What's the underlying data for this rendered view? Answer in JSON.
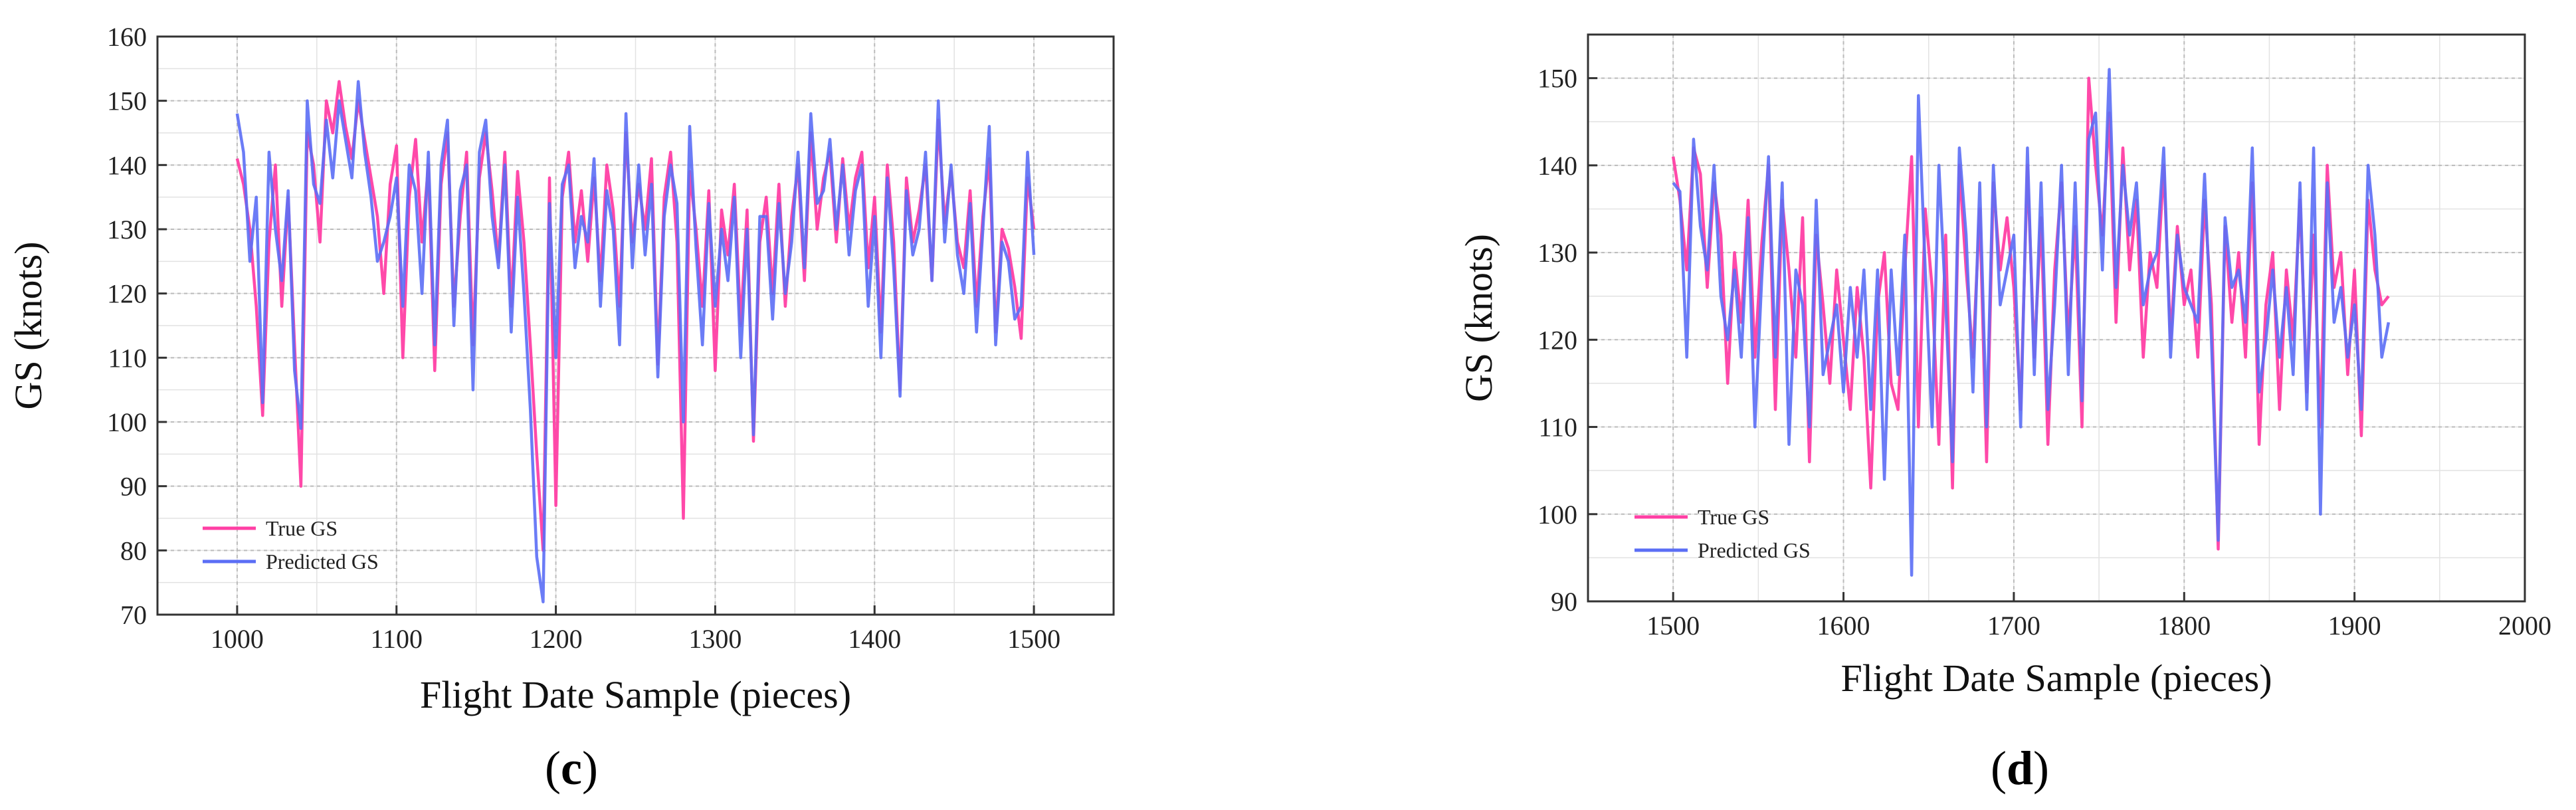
{
  "colors": {
    "true_series": "#ff3fa4",
    "predicted_series": "#5b6ef5",
    "grid": "#bbbbbb",
    "axis": "#333333"
  },
  "chart_data": [
    {
      "type": "line",
      "panel_label": "c",
      "xlabel": "Flight Date Sample (pieces)",
      "ylabel": "GS (knots)",
      "xlim": [
        950,
        1550
      ],
      "ylim": [
        70,
        160
      ],
      "xticks": [
        1000,
        1100,
        1200,
        1300,
        1400,
        1500
      ],
      "yticks": [
        70,
        80,
        90,
        100,
        110,
        120,
        130,
        140,
        150,
        160
      ],
      "grid": true,
      "legend_position": "lower-left",
      "series": [
        {
          "name": "True GS",
          "color": "#ff3fa4",
          "x": [
            1000,
            1004,
            1008,
            1012,
            1016,
            1020,
            1024,
            1028,
            1032,
            1036,
            1040,
            1044,
            1048,
            1052,
            1056,
            1060,
            1064,
            1068,
            1072,
            1076,
            1080,
            1084,
            1088,
            1092,
            1096,
            1100,
            1104,
            1108,
            1112,
            1116,
            1120,
            1124,
            1128,
            1132,
            1136,
            1140,
            1144,
            1148,
            1152,
            1156,
            1160,
            1164,
            1168,
            1172,
            1176,
            1180,
            1184,
            1188,
            1192,
            1196,
            1200,
            1204,
            1208,
            1212,
            1216,
            1220,
            1224,
            1228,
            1232,
            1236,
            1240,
            1244,
            1248,
            1252,
            1256,
            1260,
            1264,
            1268,
            1272,
            1276,
            1280,
            1284,
            1288,
            1292,
            1296,
            1300,
            1304,
            1308,
            1312,
            1316,
            1320,
            1324,
            1328,
            1332,
            1336,
            1340,
            1344,
            1348,
            1352,
            1356,
            1360,
            1364,
            1368,
            1372,
            1376,
            1380,
            1384,
            1388,
            1392,
            1396,
            1400,
            1404,
            1408,
            1412,
            1416,
            1420,
            1424,
            1428,
            1432,
            1436,
            1440,
            1444,
            1448,
            1452,
            1456,
            1460,
            1464,
            1468,
            1472,
            1476,
            1480,
            1484,
            1488,
            1492,
            1496,
            1500
          ],
          "y": [
            141,
            137,
            130,
            118,
            101,
            128,
            140,
            118,
            135,
            112,
            90,
            145,
            140,
            128,
            150,
            145,
            153,
            146,
            141,
            150,
            144,
            138,
            132,
            120,
            137,
            143,
            110,
            135,
            144,
            128,
            140,
            108,
            137,
            145,
            118,
            132,
            142,
            112,
            138,
            145,
            136,
            125,
            142,
            118,
            139,
            128,
            112,
            95,
            80,
            138,
            87,
            135,
            142,
            128,
            136,
            125,
            138,
            122,
            140,
            133,
            118,
            145,
            128,
            137,
            130,
            141,
            109,
            135,
            142,
            128,
            85,
            139,
            130,
            118,
            136,
            108,
            133,
            126,
            137,
            115,
            133,
            97,
            128,
            135,
            120,
            137,
            118,
            132,
            140,
            122,
            145,
            130,
            138,
            142,
            128,
            141,
            130,
            138,
            142,
            124,
            135,
            114,
            140,
            128,
            105,
            138,
            128,
            133,
            140,
            122,
            147,
            131,
            139,
            128,
            124,
            136,
            118,
            132,
            141,
            114,
            130,
            127,
            121,
            113,
            138,
            130
          ]
        },
        {
          "name": "Predicted GS",
          "color": "#5b6ef5",
          "x": [
            1000,
            1004,
            1008,
            1012,
            1016,
            1020,
            1024,
            1028,
            1032,
            1036,
            1040,
            1044,
            1048,
            1052,
            1056,
            1060,
            1064,
            1068,
            1072,
            1076,
            1080,
            1084,
            1088,
            1092,
            1096,
            1100,
            1104,
            1108,
            1112,
            1116,
            1120,
            1124,
            1128,
            1132,
            1136,
            1140,
            1144,
            1148,
            1152,
            1156,
            1160,
            1164,
            1168,
            1172,
            1176,
            1180,
            1184,
            1188,
            1192,
            1196,
            1200,
            1204,
            1208,
            1212,
            1216,
            1220,
            1224,
            1228,
            1232,
            1236,
            1240,
            1244,
            1248,
            1252,
            1256,
            1260,
            1264,
            1268,
            1272,
            1276,
            1280,
            1284,
            1288,
            1292,
            1296,
            1300,
            1304,
            1308,
            1312,
            1316,
            1320,
            1324,
            1328,
            1332,
            1336,
            1340,
            1344,
            1348,
            1352,
            1356,
            1360,
            1364,
            1368,
            1372,
            1376,
            1380,
            1384,
            1388,
            1392,
            1396,
            1400,
            1404,
            1408,
            1412,
            1416,
            1420,
            1424,
            1428,
            1432,
            1436,
            1440,
            1444,
            1448,
            1452,
            1456,
            1460,
            1464,
            1468,
            1472,
            1476,
            1480,
            1484,
            1488,
            1492,
            1496,
            1500
          ],
          "y": [
            148,
            142,
            125,
            135,
            103,
            142,
            130,
            122,
            136,
            108,
            99,
            150,
            137,
            134,
            147,
            138,
            150,
            144,
            138,
            153,
            142,
            135,
            125,
            128,
            132,
            138,
            118,
            140,
            136,
            120,
            142,
            112,
            140,
            147,
            115,
            136,
            140,
            105,
            142,
            147,
            132,
            124,
            140,
            114,
            135,
            120,
            102,
            79,
            72,
            134,
            110,
            137,
            140,
            124,
            132,
            128,
            141,
            118,
            136,
            130,
            112,
            148,
            124,
            140,
            126,
            137,
            107,
            132,
            140,
            134,
            100,
            146,
            127,
            112,
            134,
            118,
            130,
            122,
            135,
            110,
            130,
            98,
            132,
            132,
            116,
            134,
            120,
            128,
            142,
            124,
            148,
            134,
            136,
            144,
            130,
            140,
            126,
            136,
            140,
            118,
            132,
            110,
            138,
            124,
            104,
            136,
            126,
            130,
            142,
            122,
            150,
            128,
            140,
            126,
            120,
            134,
            114,
            130,
            146,
            112,
            128,
            125,
            116,
            118,
            142,
            126
          ]
        }
      ]
    },
    {
      "type": "line",
      "panel_label": "d",
      "xlabel": "Flight Date Sample (pieces)",
      "ylabel": "GS (knots)",
      "xlim": [
        1450,
        2000
      ],
      "ylim": [
        90,
        155
      ],
      "xticks": [
        1500,
        1600,
        1700,
        1800,
        1900,
        2000
      ],
      "yticks": [
        90,
        100,
        110,
        120,
        130,
        140,
        150
      ],
      "grid": true,
      "legend_position": "lower-left",
      "series": [
        {
          "name": "True GS",
          "color": "#ff3fa4",
          "x": [
            1500,
            1504,
            1508,
            1512,
            1516,
            1520,
            1524,
            1528,
            1532,
            1536,
            1540,
            1544,
            1548,
            1552,
            1556,
            1560,
            1564,
            1568,
            1572,
            1576,
            1580,
            1584,
            1588,
            1592,
            1596,
            1600,
            1604,
            1608,
            1612,
            1616,
            1620,
            1624,
            1628,
            1632,
            1636,
            1640,
            1644,
            1648,
            1652,
            1656,
            1660,
            1664,
            1668,
            1672,
            1676,
            1680,
            1684,
            1688,
            1692,
            1696,
            1700,
            1704,
            1708,
            1712,
            1716,
            1720,
            1724,
            1728,
            1732,
            1736,
            1740,
            1744,
            1748,
            1752,
            1756,
            1760,
            1764,
            1768,
            1772,
            1776,
            1780,
            1784,
            1788,
            1792,
            1796,
            1800,
            1804,
            1808,
            1812,
            1816,
            1820,
            1824,
            1828,
            1832,
            1836,
            1840,
            1844,
            1848,
            1852,
            1856,
            1860,
            1864,
            1868,
            1872,
            1876,
            1880,
            1884,
            1888,
            1892,
            1896,
            1900,
            1904,
            1908,
            1912,
            1916,
            1920
          ],
          "y": [
            141,
            136,
            128,
            142,
            139,
            126,
            138,
            132,
            115,
            130,
            122,
            136,
            118,
            131,
            140,
            112,
            136,
            128,
            118,
            134,
            106,
            132,
            124,
            115,
            128,
            120,
            112,
            126,
            118,
            103,
            124,
            130,
            115,
            112,
            128,
            141,
            110,
            135,
            126,
            108,
            132,
            103,
            140,
            128,
            118,
            135,
            106,
            138,
            128,
            134,
            126,
            112,
            140,
            118,
            134,
            108,
            128,
            138,
            120,
            133,
            110,
            150,
            140,
            132,
            146,
            122,
            142,
            128,
            136,
            118,
            130,
            126,
            140,
            120,
            133,
            124,
            128,
            118,
            136,
            124,
            96,
            133,
            122,
            130,
            118,
            138,
            108,
            124,
            130,
            112,
            128,
            120,
            136,
            114,
            132,
            110,
            140,
            126,
            130,
            116,
            128,
            109,
            136,
            128,
            124,
            125
          ]
        },
        {
          "name": "Predicted GS",
          "color": "#5b6ef5",
          "x": [
            1500,
            1504,
            1508,
            1512,
            1516,
            1520,
            1524,
            1528,
            1532,
            1536,
            1540,
            1544,
            1548,
            1552,
            1556,
            1560,
            1564,
            1568,
            1572,
            1576,
            1580,
            1584,
            1588,
            1592,
            1596,
            1600,
            1604,
            1608,
            1612,
            1616,
            1620,
            1624,
            1628,
            1632,
            1636,
            1640,
            1644,
            1648,
            1652,
            1656,
            1660,
            1664,
            1668,
            1672,
            1676,
            1680,
            1684,
            1688,
            1692,
            1696,
            1700,
            1704,
            1708,
            1712,
            1716,
            1720,
            1724,
            1728,
            1732,
            1736,
            1740,
            1744,
            1748,
            1752,
            1756,
            1760,
            1764,
            1768,
            1772,
            1776,
            1780,
            1784,
            1788,
            1792,
            1796,
            1800,
            1804,
            1808,
            1812,
            1816,
            1820,
            1824,
            1828,
            1832,
            1836,
            1840,
            1844,
            1848,
            1852,
            1856,
            1860,
            1864,
            1868,
            1872,
            1876,
            1880,
            1884,
            1888,
            1892,
            1896,
            1900,
            1904,
            1908,
            1912,
            1916,
            1920
          ],
          "y": [
            138,
            137,
            118,
            143,
            133,
            128,
            140,
            125,
            120,
            128,
            118,
            134,
            110,
            127,
            141,
            118,
            138,
            108,
            128,
            124,
            110,
            136,
            116,
            120,
            124,
            114,
            126,
            118,
            128,
            112,
            128,
            104,
            128,
            116,
            132,
            93,
            148,
            128,
            110,
            140,
            124,
            106,
            142,
            132,
            114,
            138,
            110,
            140,
            124,
            128,
            132,
            110,
            142,
            116,
            138,
            112,
            124,
            140,
            116,
            138,
            113,
            143,
            146,
            128,
            151,
            126,
            140,
            132,
            138,
            124,
            128,
            130,
            142,
            118,
            132,
            126,
            124,
            122,
            139,
            120,
            97,
            134,
            126,
            128,
            122,
            142,
            114,
            120,
            128,
            118,
            126,
            116,
            138,
            112,
            142,
            100,
            138,
            122,
            126,
            118,
            124,
            112,
            140,
            132,
            118,
            122
          ]
        }
      ]
    }
  ]
}
